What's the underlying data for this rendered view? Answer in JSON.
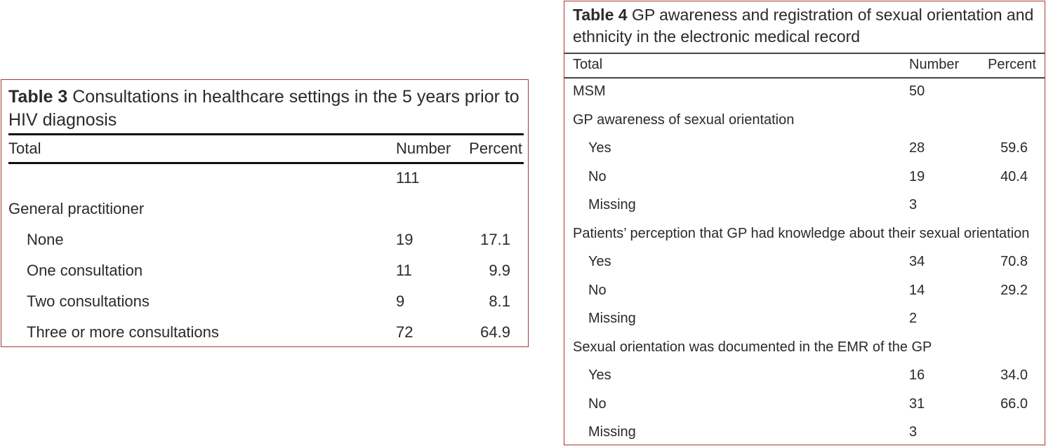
{
  "table3": {
    "label": "Table 3",
    "title": "Consultations in healthcare settings in the 5 years prior to HIV diagnosis",
    "headers": [
      "Total",
      "Number",
      "Percent"
    ],
    "rows": [
      {
        "label": "",
        "number": "111",
        "percent": "",
        "indent": false
      },
      {
        "label": "General practitioner",
        "number": "",
        "percent": "",
        "indent": false
      },
      {
        "label": "None",
        "number": "19",
        "percent": "17.1",
        "indent": true
      },
      {
        "label": "One consultation",
        "number": "11",
        "percent": "9.9",
        "indent": true
      },
      {
        "label": "Two consultations",
        "number": "9",
        "percent": "8.1",
        "indent": true
      },
      {
        "label": "Three or more consultations",
        "number": "72",
        "percent": "64.9",
        "indent": true
      }
    ]
  },
  "table4": {
    "label": "Table 4",
    "title": "GP awareness and registration of sexual orientation and ethnicity in the electronic medical record",
    "headers": [
      "Total",
      "Number",
      "Percent"
    ],
    "rows": [
      {
        "label": "MSM",
        "number": "50",
        "percent": "",
        "indent": false
      },
      {
        "label": "GP awareness of sexual orientation",
        "number": "",
        "percent": "",
        "indent": false
      },
      {
        "label": "Yes",
        "number": "28",
        "percent": "59.6",
        "indent": true
      },
      {
        "label": "No",
        "number": "19",
        "percent": "40.4",
        "indent": true
      },
      {
        "label": "Missing",
        "number": "3",
        "percent": "",
        "indent": true
      },
      {
        "label": "Patients’ perception that GP had knowledge about their sexual orientation",
        "number": "",
        "percent": "",
        "indent": false
      },
      {
        "label": "Yes",
        "number": "34",
        "percent": "70.8",
        "indent": true
      },
      {
        "label": "No",
        "number": "14",
        "percent": "29.2",
        "indent": true
      },
      {
        "label": "Missing",
        "number": "2",
        "percent": "",
        "indent": true
      },
      {
        "label": "Sexual orientation was documented in the EMR of the GP",
        "number": "",
        "percent": "",
        "indent": false
      },
      {
        "label": "Yes",
        "number": "16",
        "percent": "34.0",
        "indent": true
      },
      {
        "label": "No",
        "number": "31",
        "percent": "66.0",
        "indent": true
      },
      {
        "label": "Missing",
        "number": "3",
        "percent": "",
        "indent": true
      }
    ]
  }
}
